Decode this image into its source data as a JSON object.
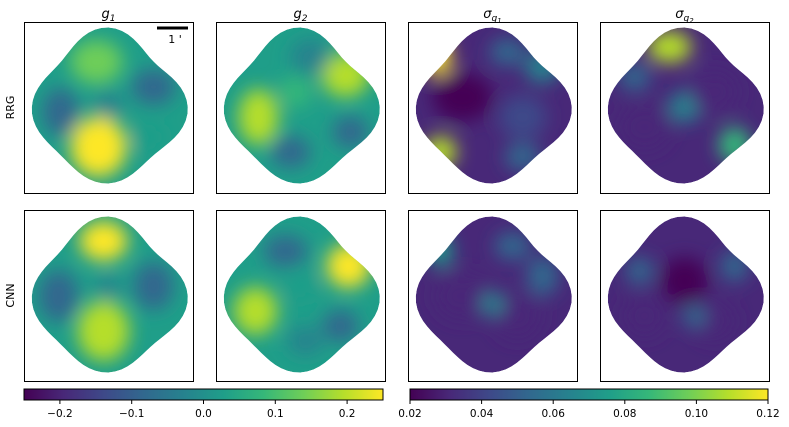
{
  "chart_data": {
    "type": "heatmap",
    "columns": [
      {
        "id": "g1",
        "base": "g",
        "sub": "1"
      },
      {
        "id": "g2",
        "base": "g",
        "sub": "2"
      },
      {
        "id": "sg1",
        "base": "σ",
        "sub": "g",
        "subsub": "1"
      },
      {
        "id": "sg2",
        "base": "σ",
        "sub": "g",
        "subsub": "2"
      }
    ],
    "rows": [
      "RRG",
      "CNN"
    ],
    "scalebar_label": "1 '",
    "colormap": "viridis",
    "colormap_stops": [
      "#440154",
      "#482878",
      "#3e4989",
      "#31688e",
      "#26828e",
      "#1f9e89",
      "#35b779",
      "#6ece58",
      "#b5de2b",
      "#fde725"
    ],
    "colorbars": [
      {
        "range": [
          -0.25,
          0.25
        ],
        "ticks": [
          -0.2,
          -0.1,
          0.0,
          0.1,
          0.2
        ],
        "tick_labels": [
          "−0.2",
          "−0.1",
          "0.0",
          "0.1",
          "0.2"
        ]
      },
      {
        "range": [
          0.02,
          0.12
        ],
        "ticks": [
          0.02,
          0.04,
          0.06,
          0.08,
          0.1,
          0.12
        ],
        "tick_labels": [
          "0.02",
          "0.04",
          "0.06",
          "0.08",
          "0.10",
          "0.12"
        ]
      }
    ],
    "panel_background_value": {
      "g1": 0.0,
      "g2": 0.02,
      "sg1": 0.032,
      "sg2": 0.033
    }
  }
}
